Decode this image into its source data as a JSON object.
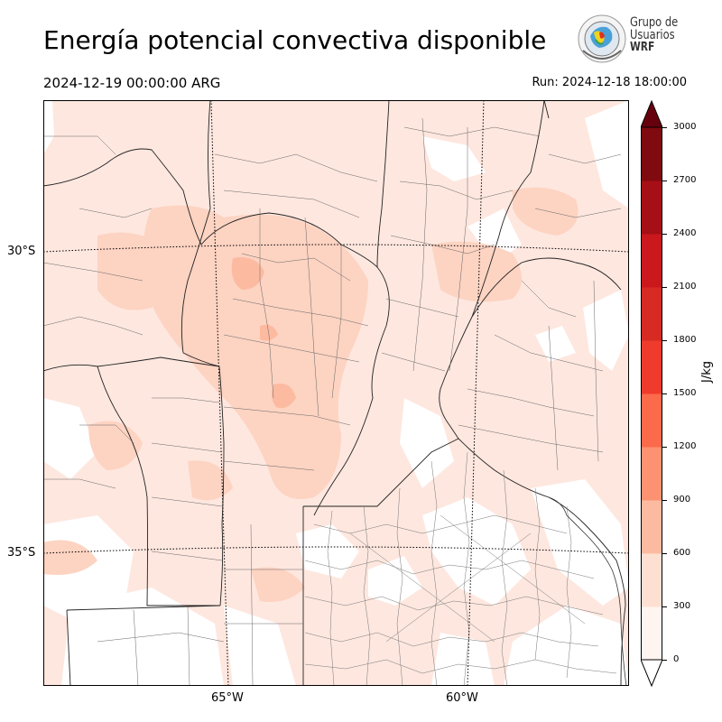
{
  "header": {
    "title": "Energía potencial convectiva disponible",
    "valid_time": "2024-12-19 00:00:00 ARG",
    "run_time": "Run: 2024-12-18 18:00:00"
  },
  "logo": {
    "line1": "Grupo de",
    "line2": "Usuarios",
    "line3": "WRF",
    "icon": "globe-emblem-icon"
  },
  "map": {
    "lat_labels": [
      "30°S",
      "35°S"
    ],
    "lon_labels": [
      "65°W",
      "60°W"
    ],
    "field_colors": {
      "level_0_300": "#fee7df",
      "level_300_600": "#fdd3c2",
      "level_600_900": "#fcbba1"
    }
  },
  "colorbar": {
    "unit": "J/kg",
    "ticks": [
      "0",
      "300",
      "600",
      "900",
      "1200",
      "1500",
      "1800",
      "2100",
      "2400",
      "2700",
      "3000"
    ],
    "colors": [
      "#fff5f0",
      "#fee0d2",
      "#fcbba1",
      "#fc9272",
      "#fb6a4a",
      "#ef3b2c",
      "#d62a22",
      "#cb181d",
      "#a50f15",
      "#7f0a0f"
    ],
    "over_color": "#67000d",
    "under_color": "#ffffff"
  }
}
